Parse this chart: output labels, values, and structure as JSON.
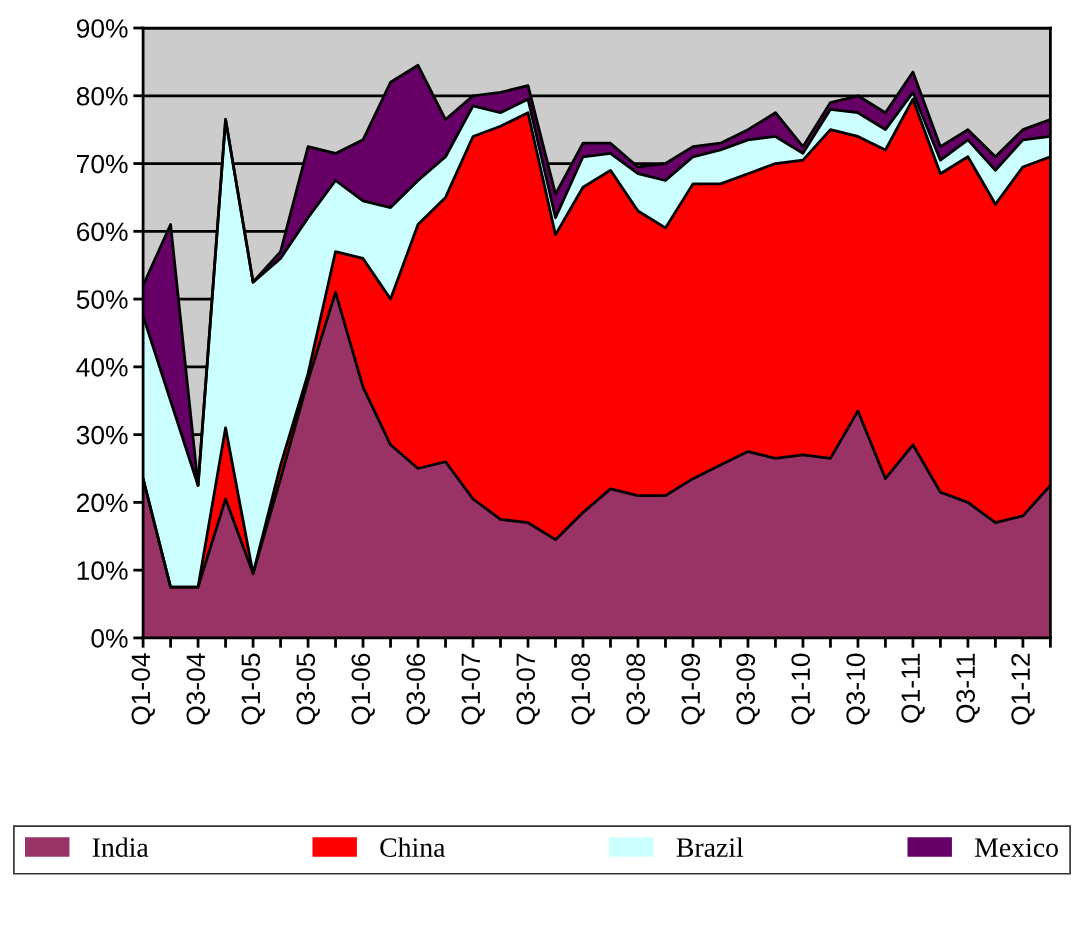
{
  "chart_data": {
    "type": "area",
    "stacked": true,
    "categories": [
      "Q1-04",
      null,
      "Q3-04",
      null,
      "Q1-05",
      null,
      "Q3-05",
      null,
      "Q1-06",
      null,
      "Q3-06",
      null,
      "Q1-07",
      null,
      "Q3-07",
      null,
      "Q1-08",
      null,
      "Q3-08",
      null,
      "Q1-09",
      null,
      "Q3-09",
      null,
      "Q1-10",
      null,
      "Q3-10",
      null,
      "Q1-11",
      null,
      "Q3-11",
      null,
      "Q1-12",
      null
    ],
    "series": [
      {
        "name": "India",
        "color": "#993366",
        "values": [
          23.5,
          7.5,
          7.5,
          20.5,
          9.5,
          23.5,
          38,
          51,
          37,
          28.5,
          25,
          26,
          20.5,
          17.5,
          17,
          14.5,
          18.5,
          22,
          21,
          21,
          23.5,
          25.5,
          27.5,
          26.5,
          27,
          26.5,
          33.5,
          23.5,
          28.5,
          21.5,
          20,
          17,
          18,
          22.5
        ]
      },
      {
        "name": "China",
        "color": "#ff0000",
        "values": [
          0,
          0,
          0,
          10.5,
          0,
          2,
          1,
          6,
          19,
          21.5,
          36,
          39,
          53.5,
          58,
          60.5,
          45,
          48,
          47,
          42,
          39.5,
          43.5,
          41.5,
          41,
          43.5,
          43.5,
          48.5,
          40.5,
          48.5,
          51,
          47,
          51,
          47,
          51.5,
          48.5
        ]
      },
      {
        "name": "Brazil",
        "color": "#ccffff",
        "values": [
          24,
          27.5,
          15,
          45.5,
          43,
          30.5,
          23,
          10.5,
          8.5,
          13.5,
          6.5,
          6,
          4.5,
          2,
          2,
          2.5,
          4.5,
          2.5,
          5.5,
          7,
          4,
          5,
          5,
          4,
          1,
          3,
          3.5,
          3,
          1,
          2,
          2.5,
          5,
          4,
          3
        ]
      },
      {
        "name": "Mexico",
        "color": "#660066",
        "values": [
          4.5,
          26,
          0,
          0,
          0,
          1,
          10.5,
          4,
          9,
          18.5,
          17,
          5.5,
          1.5,
          3,
          2,
          3.5,
          2,
          1.5,
          1,
          2.5,
          1.5,
          1,
          1.5,
          3.5,
          1,
          1,
          2.5,
          2.5,
          3,
          2,
          1.5,
          2,
          1.5,
          2.5
        ]
      }
    ],
    "ylim": [
      0,
      90
    ],
    "yticks": [
      {
        "value": 0,
        "label": "0%"
      },
      {
        "value": 10,
        "label": "10%"
      },
      {
        "value": 20,
        "label": "20%"
      },
      {
        "value": 30,
        "label": "30%"
      },
      {
        "value": 40,
        "label": "40%"
      },
      {
        "value": 50,
        "label": "50%"
      },
      {
        "value": 60,
        "label": "60%"
      },
      {
        "value": 70,
        "label": "70%"
      },
      {
        "value": 80,
        "label": "80%"
      },
      {
        "value": 90,
        "label": "90%"
      }
    ],
    "grid": "y",
    "legend": "bottom"
  }
}
